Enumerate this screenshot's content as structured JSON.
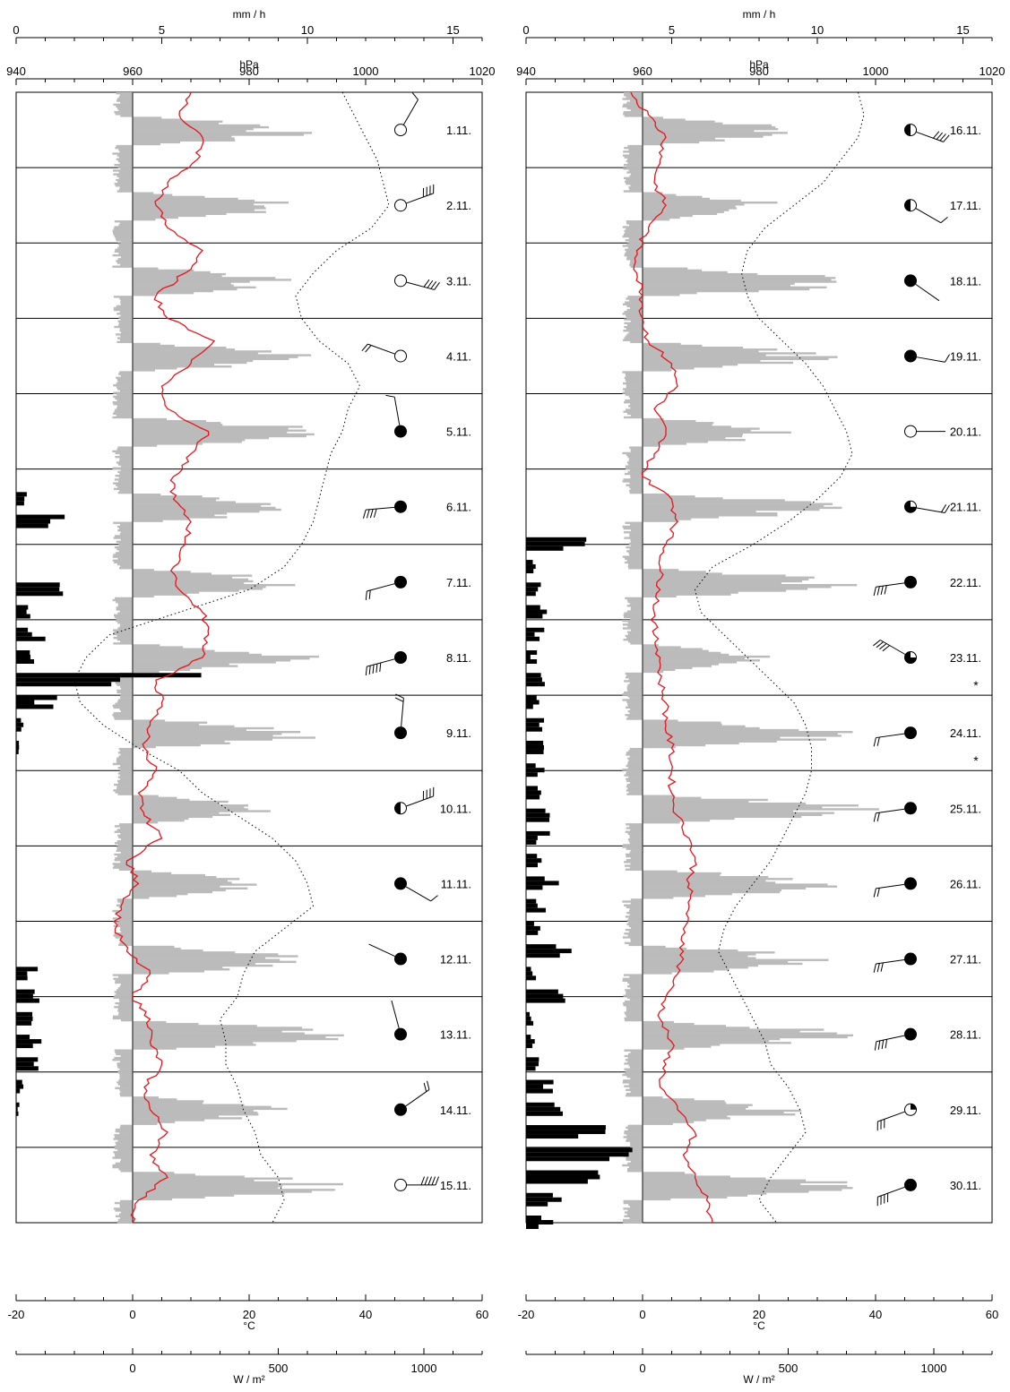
{
  "chart_data": [
    {
      "type": "line",
      "panel": "left",
      "top_axes": [
        {
          "label": "mm / h",
          "range": [
            0,
            16
          ],
          "ticks": [
            0,
            5,
            10,
            15
          ]
        },
        {
          "label": "hPa",
          "range": [
            940,
            1020
          ],
          "ticks": [
            940,
            960,
            980,
            1000,
            1020
          ]
        }
      ],
      "bottom_axes": [
        {
          "label": "°C",
          "range": [
            -20,
            60
          ],
          "ticks": [
            -20,
            0,
            20,
            40,
            60
          ]
        },
        {
          "label": "W / m²",
          "range": [
            -400,
            1200
          ],
          "ticks": [
            0,
            500,
            1000
          ]
        }
      ],
      "days": [
        {
          "date": "1.11.",
          "cloud": "clear",
          "wind_dir": 30,
          "barbs": 1
        },
        {
          "date": "2.11.",
          "cloud": "clear",
          "wind_dir": 70,
          "barbs": 4
        },
        {
          "date": "3.11.",
          "cloud": "clear",
          "wind_dir": 105,
          "barbs": 4
        },
        {
          "date": "4.11.",
          "cloud": "clear",
          "wind_dir": 290,
          "barbs": 2
        },
        {
          "date": "5.11.",
          "cloud": "overcast",
          "wind_dir": 350,
          "barbs": 1
        },
        {
          "date": "6.11.",
          "cloud": "overcast",
          "wind_dir": 265,
          "barbs": 4
        },
        {
          "date": "7.11.",
          "cloud": "overcast",
          "wind_dir": 255,
          "barbs": 2
        },
        {
          "date": "8.11.",
          "cloud": "overcast",
          "wind_dir": 255,
          "barbs": 5
        },
        {
          "date": "9.11.",
          "cloud": "overcast",
          "wind_dir": 5,
          "barbs": 2
        },
        {
          "date": "10.11.",
          "cloud": "half",
          "wind_dir": 70,
          "barbs": 4
        },
        {
          "date": "11.11.",
          "cloud": "overcast",
          "wind_dir": 120,
          "barbs": 1
        },
        {
          "date": "12.11.",
          "cloud": "overcast",
          "wind_dir": 295,
          "barbs": 0
        },
        {
          "date": "13.11.",
          "cloud": "overcast",
          "wind_dir": 345,
          "barbs": 0
        },
        {
          "date": "14.11.",
          "cloud": "overcast",
          "wind_dir": 55,
          "barbs": 2
        },
        {
          "date": "15.11.",
          "cloud": "clear",
          "wind_dir": 90,
          "barbs": 5
        }
      ],
      "pressure_hPa": [
        996,
        998,
        1000,
        1002,
        1003,
        1004,
        1001,
        995,
        991,
        988,
        989,
        992,
        997,
        999,
        997,
        996,
        994,
        993,
        992,
        991,
        989,
        986,
        980,
        968,
        956,
        952,
        950,
        951,
        955,
        961,
        968,
        972,
        978,
        984,
        988,
        990,
        991,
        986,
        981,
        979,
        978,
        975,
        976,
        976,
        978,
        979,
        981,
        982,
        985,
        986,
        984
      ],
      "temperature_C": [
        10,
        8,
        12,
        11,
        6,
        4,
        6,
        12,
        9,
        4,
        6,
        14,
        10,
        5,
        6,
        13,
        10,
        7,
        7,
        10,
        9,
        7,
        8,
        12,
        13,
        12,
        4,
        5,
        3,
        2,
        4,
        1,
        2,
        5,
        -1,
        1,
        -2,
        -3,
        -1,
        3,
        0,
        3,
        3,
        5,
        2,
        3,
        6,
        3,
        6,
        1,
        0
      ],
      "precip_mm_h": [
        0,
        0,
        0,
        0,
        0,
        0,
        0,
        0,
        0,
        0,
        0,
        0,
        0,
        0,
        0,
        0,
        0,
        0,
        0.3,
        1.5,
        0,
        0,
        2.5,
        0.5,
        0.8,
        0.6,
        5.3,
        1.1,
        0.3,
        0.1,
        0,
        0,
        0,
        0,
        0,
        0,
        0,
        0,
        0,
        0.6,
        0.7,
        0.5,
        0.8,
        0.6,
        0.2,
        0.1,
        0,
        0,
        0,
        0,
        0
      ]
    },
    {
      "type": "line",
      "panel": "right",
      "top_axes": [
        {
          "label": "mm / h",
          "range": [
            0,
            16
          ],
          "ticks": [
            0,
            5,
            10,
            15
          ]
        },
        {
          "label": "hPa",
          "range": [
            940,
            1020
          ],
          "ticks": [
            940,
            960,
            980,
            1000,
            1020
          ]
        }
      ],
      "bottom_axes": [
        {
          "label": "°C",
          "range": [
            -20,
            60
          ],
          "ticks": [
            -20,
            0,
            20,
            40,
            60
          ]
        },
        {
          "label": "W / m²",
          "range": [
            -400,
            1200
          ],
          "ticks": [
            0,
            500,
            1000
          ]
        }
      ],
      "days": [
        {
          "date": "16.11.",
          "cloud": "half",
          "wind_dir": 110,
          "barbs": 4
        },
        {
          "date": "17.11.",
          "cloud": "half",
          "wind_dir": 120,
          "barbs": 1
        },
        {
          "date": "18.11.",
          "cloud": "overcast",
          "wind_dir": 125,
          "barbs": 0
        },
        {
          "date": "19.11.",
          "cloud": "overcast",
          "wind_dir": 100,
          "barbs": 1
        },
        {
          "date": "20.11.",
          "cloud": "clear",
          "wind_dir": 90,
          "barbs": 0
        },
        {
          "date": "21.11.",
          "cloud": "three",
          "wind_dir": 100,
          "barbs": 2
        },
        {
          "date": "22.11.",
          "cloud": "overcast",
          "wind_dir": 262,
          "barbs": 4
        },
        {
          "date": "23.11.",
          "cloud": "three",
          "wind_dir": 300,
          "barbs": 4,
          "mark": "*"
        },
        {
          "date": "24.11.",
          "cloud": "overcast",
          "wind_dir": 262,
          "barbs": 2,
          "mark": "*"
        },
        {
          "date": "25.11.",
          "cloud": "overcast",
          "wind_dir": 262,
          "barbs": 2
        },
        {
          "date": "26.11.",
          "cloud": "overcast",
          "wind_dir": 262,
          "barbs": 2
        },
        {
          "date": "27.11.",
          "cloud": "overcast",
          "wind_dir": 262,
          "barbs": 3
        },
        {
          "date": "28.11.",
          "cloud": "overcast",
          "wind_dir": 258,
          "barbs": 4
        },
        {
          "date": "29.11.",
          "cloud": "quarter",
          "wind_dir": 250,
          "barbs": 3
        },
        {
          "date": "30.11.",
          "cloud": "overcast",
          "wind_dir": 250,
          "barbs": 4
        }
      ],
      "pressure_hPa": [
        997,
        998,
        997,
        994,
        991,
        986,
        981,
        978,
        977,
        978,
        980,
        984,
        988,
        991,
        993,
        995,
        996,
        994,
        990,
        985,
        979,
        972,
        969,
        970,
        974,
        978,
        982,
        986,
        988,
        989,
        989,
        988,
        986,
        984,
        982,
        979,
        976,
        974,
        973,
        975,
        977,
        979,
        981,
        982,
        985,
        987,
        988,
        985,
        982,
        980,
        983
      ],
      "temperature_C": [
        -2,
        1,
        4,
        3,
        2,
        4,
        1,
        -1,
        -1,
        0,
        0,
        1,
        5,
        6,
        2,
        4,
        2,
        0,
        5,
        6,
        4,
        3,
        3,
        2,
        2,
        3,
        3,
        4,
        4,
        5,
        5,
        5,
        6,
        8,
        9,
        8,
        8,
        7,
        7,
        6,
        4,
        3,
        5,
        4,
        3,
        6,
        9,
        7,
        9,
        11,
        12
      ],
      "precip_mm_h": [
        0,
        0,
        0,
        0,
        0,
        0,
        0,
        0,
        0,
        0,
        0,
        0,
        0,
        0,
        0,
        0,
        0,
        0,
        0,
        0,
        1.8,
        0.4,
        0.6,
        0.7,
        0.5,
        0.3,
        0.5,
        0.4,
        0.5,
        0.8,
        0.6,
        0.4,
        0.8,
        0.7,
        0.5,
        0.9,
        0.6,
        0.4,
        1.8,
        0.3,
        1.1,
        0.2,
        0.3,
        0.4,
        0.9,
        1.4,
        2.3,
        2.9,
        2.0,
        1.4,
        0.8
      ]
    }
  ]
}
